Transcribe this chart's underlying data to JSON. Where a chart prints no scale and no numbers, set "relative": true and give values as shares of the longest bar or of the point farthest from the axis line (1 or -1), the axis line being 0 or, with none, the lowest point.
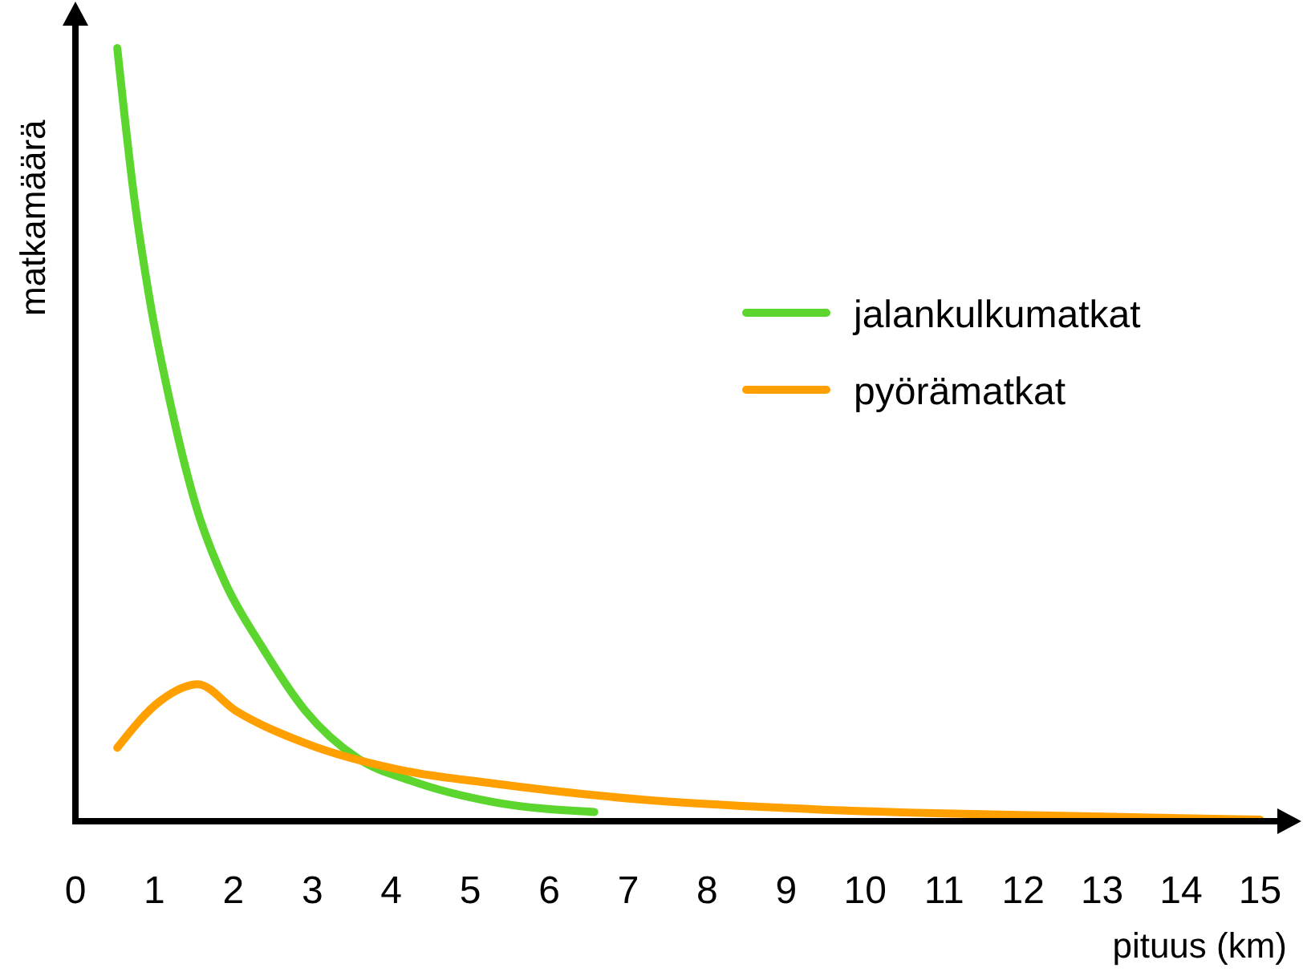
{
  "chart_data": {
    "type": "line",
    "relative": true,
    "xlabel": "pituus (km)",
    "ylabel": "matkamäärä",
    "xlim": [
      0,
      15.3
    ],
    "xticks": [
      0,
      1,
      2,
      3,
      4,
      5,
      6,
      7,
      8,
      9,
      10,
      11,
      12,
      13,
      14,
      15
    ],
    "legend": "right",
    "grid": false,
    "marker": "none",
    "line_style": "solid",
    "series": [
      {
        "name": "jalankulkumatkat",
        "color": "#5cd62e",
        "x": [
          0.53,
          0.74,
          0.94,
          1.21,
          1.55,
          1.89,
          2.36,
          2.91,
          3.58,
          4.26,
          5.28,
          6.57
        ],
        "values": [
          1,
          0.81,
          0.675,
          0.537,
          0.4,
          0.31,
          0.226,
          0.143,
          0.081,
          0.052,
          0.025,
          0.012
        ]
      },
      {
        "name": "pyörämatkat",
        "color": "#ffa000",
        "x": [
          0.53,
          1.08,
          1.55,
          2.03,
          2.91,
          4.13,
          5.28,
          7.17,
          9,
          11,
          13,
          15
        ],
        "values": [
          0.095,
          0.156,
          0.177,
          0.143,
          0.101,
          0.066,
          0.049,
          0.028,
          0.017,
          0.01,
          0.006,
          0.002
        ]
      }
    ]
  }
}
